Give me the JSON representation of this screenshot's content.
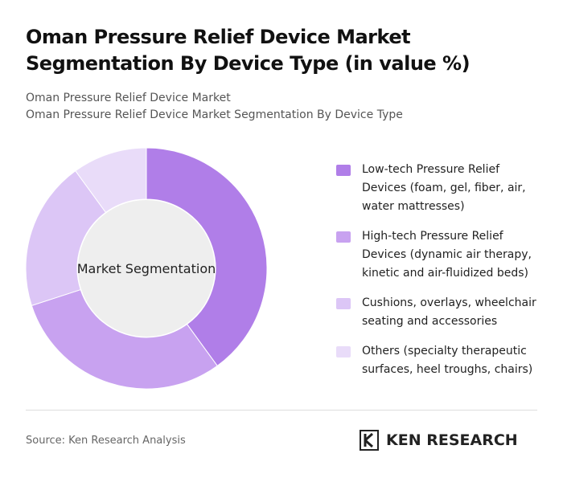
{
  "chart_data": {
    "type": "donut",
    "title": "Oman Pressure Relief Device Market Segmentation By Device Type (in value %)",
    "subtitles": [
      "Oman Pressure Relief Device Market",
      "Oman Pressure Relief Device Market Segmentation By Device Type"
    ],
    "center_label": "Market Segmentation",
    "categories": [
      "Low-tech Pressure Relief Devices (foam, gel, fiber, air, water mattresses)",
      "High-tech Pressure Relief Devices (dynamic air therapy, kinetic and air-fluidized beds)",
      "Cushions, overlays, wheelchair seating and accessories",
      "Others (specialty therapeutic surfaces, heel troughs, chairs)"
    ],
    "values": [
      40,
      30,
      20,
      10
    ],
    "colors": [
      "#b07ee8",
      "#c8a2f0",
      "#dcc6f6",
      "#e9dcf9"
    ]
  },
  "source": "Source: Ken Research Analysis",
  "logo": "KEN RESEARCH"
}
